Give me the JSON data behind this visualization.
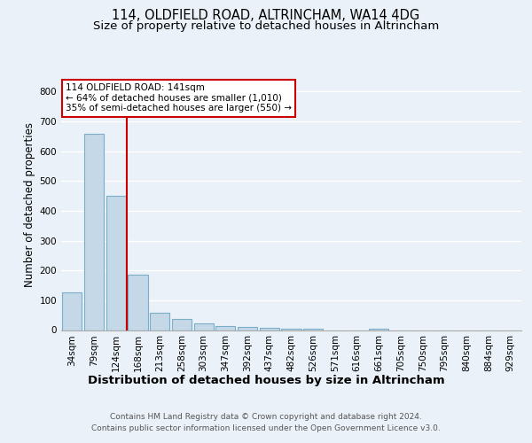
{
  "title_line1": "114, OLDFIELD ROAD, ALTRINCHAM, WA14 4DG",
  "title_line2": "Size of property relative to detached houses in Altrincham",
  "xlabel": "Distribution of detached houses by size in Altrincham",
  "ylabel": "Number of detached properties",
  "footer_line1": "Contains HM Land Registry data © Crown copyright and database right 2024.",
  "footer_line2": "Contains public sector information licensed under the Open Government Licence v3.0.",
  "bar_labels": [
    "34sqm",
    "79sqm",
    "124sqm",
    "168sqm",
    "213sqm",
    "258sqm",
    "303sqm",
    "347sqm",
    "392sqm",
    "437sqm",
    "482sqm",
    "526sqm",
    "571sqm",
    "616sqm",
    "661sqm",
    "705sqm",
    "750sqm",
    "795sqm",
    "840sqm",
    "884sqm",
    "929sqm"
  ],
  "bar_values": [
    125,
    660,
    450,
    185,
    58,
    38,
    22,
    12,
    9,
    7,
    5,
    3,
    0,
    0,
    5,
    0,
    0,
    0,
    0,
    0,
    0
  ],
  "bar_color": "#c5d8e8",
  "bar_edge_color": "#7aaec8",
  "property_line_x": 2.5,
  "annotation_text": "114 OLDFIELD ROAD: 141sqm\n← 64% of detached houses are smaller (1,010)\n35% of semi-detached houses are larger (550) →",
  "annotation_box_color": "#ffffff",
  "annotation_box_edge": "#cc0000",
  "red_line_color": "#cc0000",
  "ylim": [
    0,
    840
  ],
  "yticks": [
    0,
    100,
    200,
    300,
    400,
    500,
    600,
    700,
    800
  ],
  "background_color": "#eaf1f8",
  "plot_bg_color": "#eaf1f8",
  "grid_color": "#ffffff",
  "title_fontsize": 10.5,
  "subtitle_fontsize": 9.5,
  "tick_fontsize": 7.5,
  "ylabel_fontsize": 8.5,
  "xlabel_fontsize": 9.5,
  "footer_fontsize": 6.5,
  "annotation_fontsize": 7.5
}
